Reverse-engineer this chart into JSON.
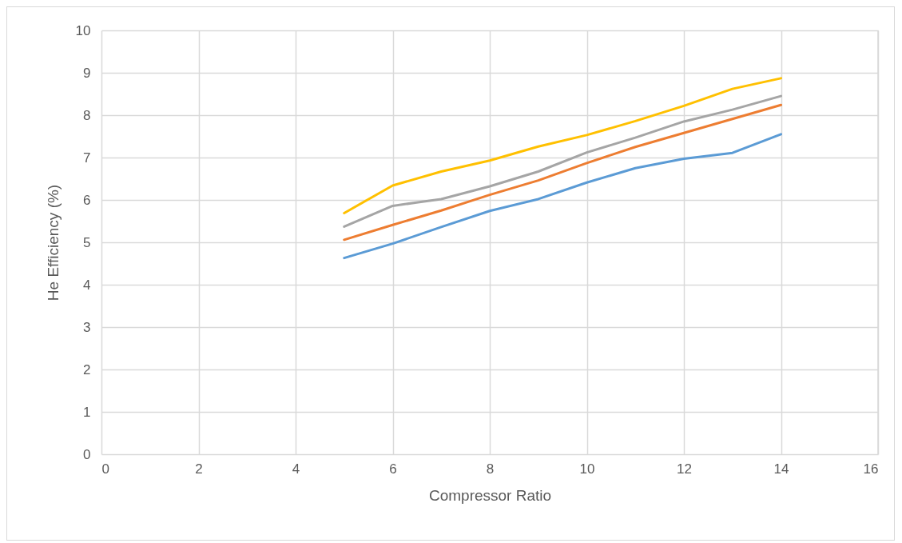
{
  "chart_data": {
    "type": "line",
    "xlabel": "Compressor Ratio",
    "ylabel": "He Efficiency (%)",
    "x": [
      5,
      6,
      7,
      8,
      9,
      10,
      11,
      12,
      13,
      14
    ],
    "series": [
      {
        "color": "#5b9bd5",
        "values": [
          4.63,
          4.97,
          5.36,
          5.74,
          6.02,
          6.41,
          6.75,
          6.97,
          7.11,
          7.55
        ]
      },
      {
        "color": "#ed7d31",
        "values": [
          5.06,
          5.41,
          5.75,
          6.12,
          6.46,
          6.87,
          7.25,
          7.58,
          7.91,
          8.24
        ]
      },
      {
        "color": "#a5a5a5",
        "values": [
          5.37,
          5.86,
          6.02,
          6.32,
          6.67,
          7.12,
          7.47,
          7.85,
          8.13,
          8.45
        ]
      },
      {
        "color": "#ffc000",
        "values": [
          5.69,
          6.34,
          6.67,
          6.93,
          7.26,
          7.53,
          7.86,
          8.22,
          8.62,
          8.87
        ]
      }
    ],
    "xlim": [
      0,
      16
    ],
    "xticks": [
      0,
      2,
      4,
      6,
      8,
      10,
      12,
      14,
      16
    ],
    "ylim": [
      0,
      10
    ],
    "yticks": [
      0,
      1,
      2,
      3,
      4,
      5,
      6,
      7,
      8,
      9,
      10
    ],
    "grid": true,
    "marker": "none",
    "line_style": "solid"
  }
}
